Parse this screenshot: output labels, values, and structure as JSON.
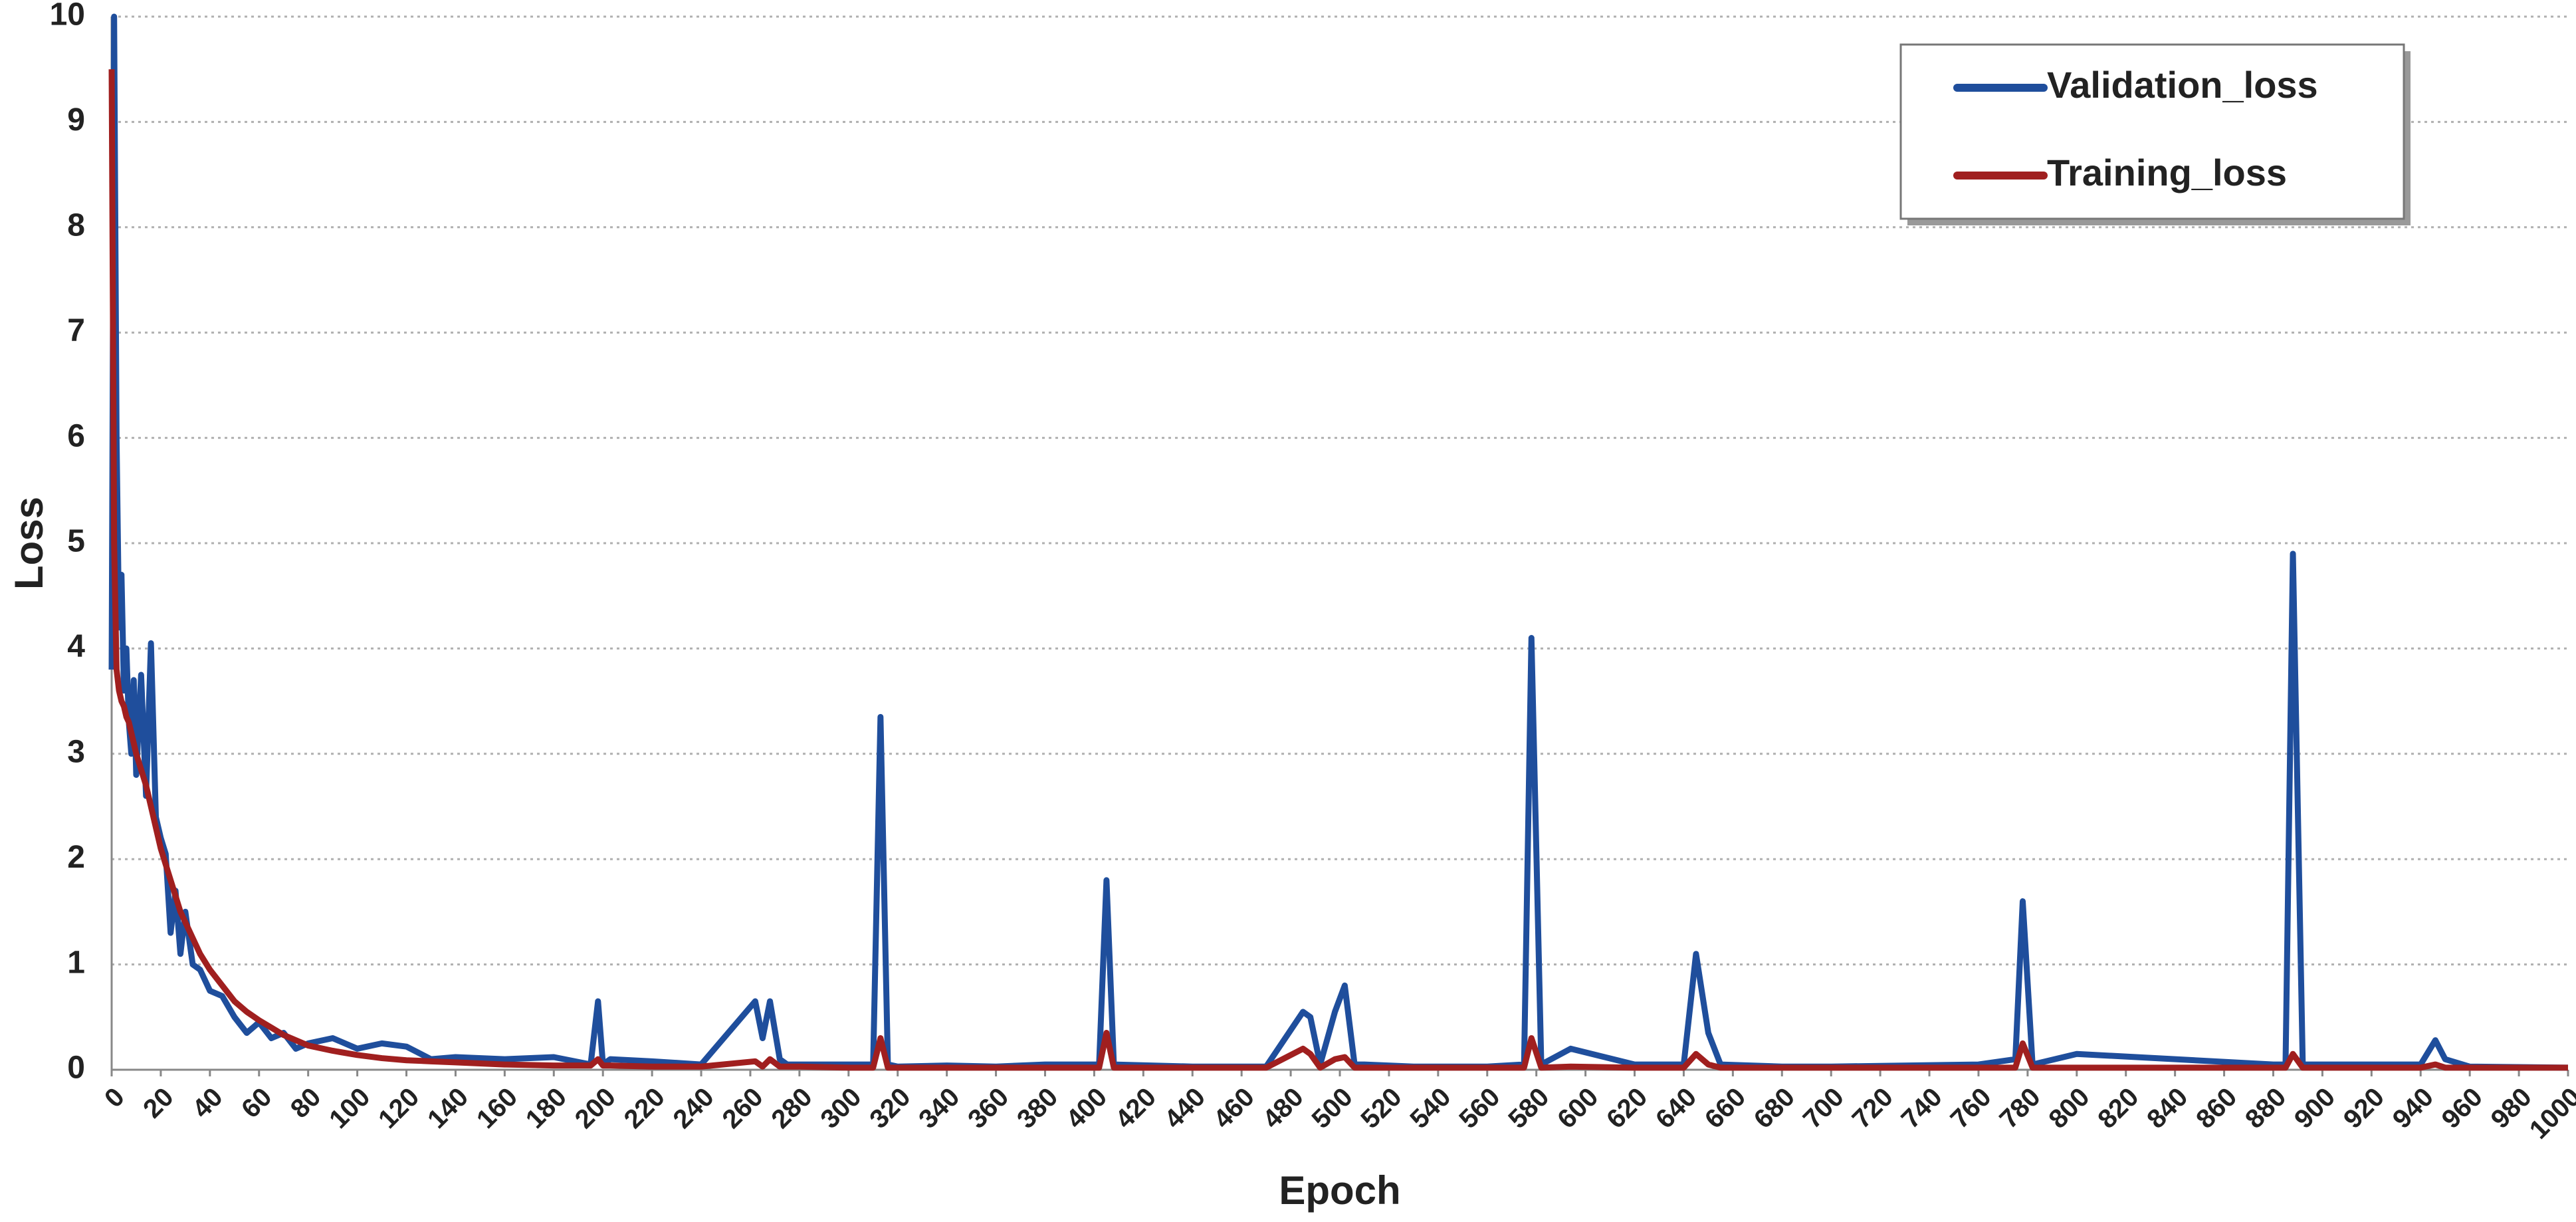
{
  "chart_data": {
    "type": "line",
    "x_label": "Epoch",
    "y_label": "Loss",
    "x": [
      0,
      1,
      2,
      3,
      4,
      5,
      6,
      7,
      8,
      9,
      10,
      12,
      14,
      16,
      18,
      20,
      22,
      24,
      26,
      28,
      30,
      33,
      36,
      40,
      45,
      50,
      55,
      60,
      65,
      70,
      75,
      80,
      90,
      100,
      110,
      120,
      130,
      140,
      160,
      180,
      195,
      198,
      200,
      203,
      220,
      240,
      262,
      265,
      268,
      272,
      275,
      280,
      300,
      310,
      313,
      316,
      320,
      340,
      360,
      380,
      400,
      402,
      405,
      408,
      440,
      470,
      485,
      488,
      492,
      498,
      502,
      506,
      510,
      530,
      560,
      575,
      578,
      582,
      594,
      620,
      640,
      645,
      650,
      655,
      680,
      700,
      760,
      775,
      778,
      782,
      800,
      880,
      885,
      888,
      892,
      940,
      946,
      950,
      960,
      1000
    ],
    "series": [
      {
        "name": "Validation_loss",
        "color": "#1f4e9c",
        "values": [
          3.8,
          10,
          6,
          4.2,
          4.7,
          3.6,
          4.0,
          3.3,
          3.0,
          3.7,
          2.8,
          3.75,
          2.6,
          4.05,
          2.4,
          2.2,
          2.05,
          1.3,
          1.7,
          1.1,
          1.5,
          1.0,
          0.95,
          0.75,
          0.7,
          0.5,
          0.35,
          0.45,
          0.3,
          0.35,
          0.2,
          0.25,
          0.3,
          0.2,
          0.25,
          0.22,
          0.1,
          0.12,
          0.1,
          0.12,
          0.05,
          0.65,
          0.05,
          0.1,
          0.08,
          0.05,
          0.65,
          0.3,
          0.65,
          0.1,
          0.05,
          0.05,
          0.05,
          0.05,
          3.35,
          0.05,
          0.03,
          0.04,
          0.03,
          0.05,
          0.05,
          0.05,
          1.8,
          0.05,
          0.03,
          0.03,
          0.55,
          0.5,
          0.05,
          0.55,
          0.8,
          0.05,
          0.05,
          0.03,
          0.03,
          0.05,
          4.1,
          0.05,
          0.2,
          0.05,
          0.05,
          1.1,
          0.35,
          0.05,
          0.03,
          0.03,
          0.05,
          0.1,
          1.6,
          0.05,
          0.15,
          0.05,
          0.05,
          4.9,
          0.05,
          0.05,
          0.28,
          0.1,
          0.03,
          0.02
        ]
      },
      {
        "name": "Training_loss",
        "color": "#a01f1f",
        "values": [
          9.5,
          5.0,
          3.8,
          3.6,
          3.5,
          3.45,
          3.35,
          3.3,
          3.2,
          3.1,
          3.0,
          2.85,
          2.7,
          2.5,
          2.3,
          2.1,
          1.95,
          1.8,
          1.65,
          1.5,
          1.4,
          1.25,
          1.1,
          0.95,
          0.8,
          0.65,
          0.55,
          0.47,
          0.4,
          0.33,
          0.28,
          0.23,
          0.18,
          0.14,
          0.11,
          0.09,
          0.08,
          0.07,
          0.05,
          0.04,
          0.04,
          0.1,
          0.04,
          0.04,
          0.03,
          0.03,
          0.08,
          0.03,
          0.1,
          0.03,
          0.03,
          0.03,
          0.02,
          0.02,
          0.3,
          0.02,
          0.02,
          0.02,
          0.02,
          0.02,
          0.02,
          0.02,
          0.35,
          0.02,
          0.02,
          0.02,
          0.2,
          0.15,
          0.02,
          0.1,
          0.12,
          0.02,
          0.02,
          0.02,
          0.02,
          0.02,
          0.3,
          0.02,
          0.03,
          0.02,
          0.02,
          0.15,
          0.05,
          0.02,
          0.02,
          0.02,
          0.02,
          0.02,
          0.25,
          0.02,
          0.02,
          0.02,
          0.02,
          0.15,
          0.02,
          0.02,
          0.05,
          0.02,
          0.02,
          0.02
        ]
      }
    ],
    "xlim": [
      0,
      1000
    ],
    "ylim": [
      0,
      10
    ],
    "xticks": [
      0,
      20,
      40,
      60,
      80,
      100,
      120,
      140,
      160,
      180,
      200,
      220,
      240,
      260,
      280,
      300,
      320,
      340,
      360,
      380,
      400,
      420,
      440,
      460,
      480,
      500,
      520,
      540,
      560,
      580,
      600,
      620,
      640,
      660,
      680,
      700,
      720,
      740,
      760,
      780,
      800,
      820,
      840,
      860,
      880,
      900,
      920,
      940,
      960,
      980,
      1000
    ],
    "yticks": [
      0,
      1,
      2,
      3,
      4,
      5,
      6,
      7,
      8,
      9,
      10
    ],
    "grid": true,
    "legend": "upper right"
  }
}
